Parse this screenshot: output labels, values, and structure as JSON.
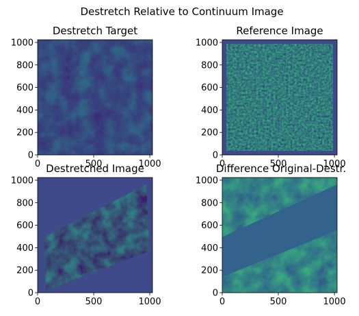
{
  "suptitle": "Destretch Relative to Continuum Image",
  "colors": {
    "viridis_dark": "#440154",
    "viridis_blue": "#3b528b",
    "viridis_teal": "#21918c",
    "viridis_green": "#5ec962",
    "viridis_yellow": "#fde725",
    "background_fill": "#3e4a89"
  },
  "chart_data": [
    {
      "type": "heatmap",
      "title": "Destretch Target",
      "colormap": "viridis",
      "xlim": [
        0,
        1024
      ],
      "ylim": [
        0,
        1024
      ],
      "xticks": [
        0,
        500,
        1000
      ],
      "yticks": [
        0,
        200,
        400,
        600,
        800,
        1000
      ],
      "content": "full-frame noisy granulation image"
    },
    {
      "type": "heatmap",
      "title": "Reference Image",
      "colormap": "viridis",
      "xlim": [
        0,
        1024
      ],
      "ylim": [
        0,
        1024
      ],
      "xticks": [
        0,
        500,
        1000
      ],
      "yticks": [
        0,
        200,
        400,
        600,
        800,
        1000
      ],
      "content": "fine high-contrast granulation with uniform border"
    },
    {
      "type": "heatmap",
      "title": "Destretched Image",
      "colormap": "viridis",
      "xlim": [
        0,
        1024
      ],
      "ylim": [
        0,
        1024
      ],
      "xticks": [
        0,
        500,
        1000
      ],
      "yticks": [
        0,
        200,
        400,
        600,
        800,
        1000
      ],
      "content": "sheared band of image data on uniform background"
    },
    {
      "type": "heatmap",
      "title": "Difference Original-Destr.",
      "colormap": "viridis",
      "xlim": [
        0,
        1024
      ],
      "ylim": [
        0,
        1024
      ],
      "xticks": [
        0,
        500,
        1000
      ],
      "yticks": [
        0,
        200,
        400,
        600,
        800,
        1000
      ],
      "content": "image data outside a flat diagonal band"
    }
  ]
}
